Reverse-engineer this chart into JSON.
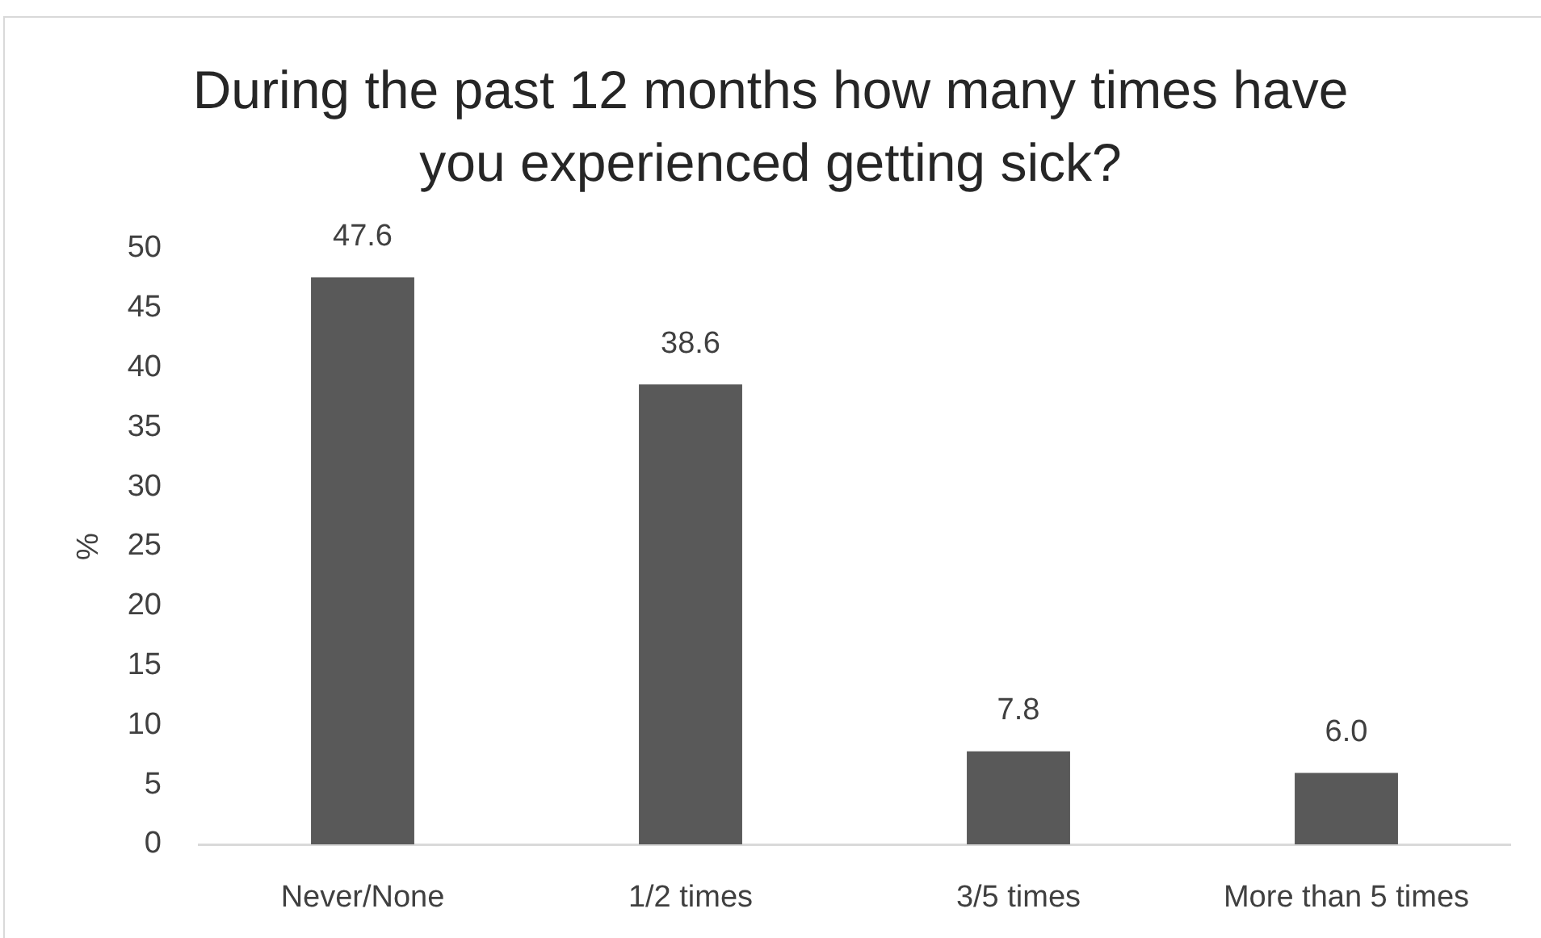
{
  "chart_data": {
    "type": "bar",
    "title": "During the past 12 months how many times have you experienced getting sick?",
    "ylabel": "%",
    "categories": [
      "Never/None",
      "1/2 times",
      "3/5 times",
      "More than 5 times"
    ],
    "values": [
      47.6,
      38.6,
      7.8,
      6.0
    ],
    "value_labels": [
      "47.6",
      "38.6",
      "7.8",
      "6.0"
    ],
    "color": "#595959",
    "ylim": [
      0,
      50
    ],
    "yticks": [
      0,
      5,
      10,
      15,
      20,
      25,
      30,
      35,
      40,
      45,
      50
    ],
    "grid": false,
    "legend": false
  }
}
